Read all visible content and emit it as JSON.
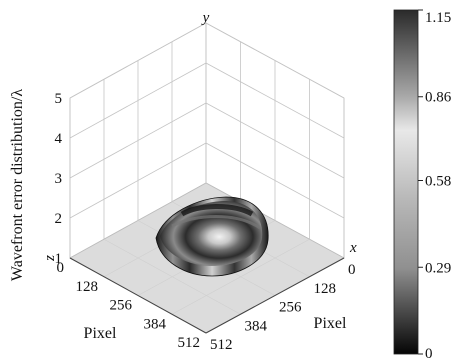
{
  "chart_data": {
    "type": "surface3d",
    "zlabel": "Wavefront error distribution/λ",
    "x_axis": {
      "name": "x",
      "label": "Pixel",
      "ticks": [
        "0",
        "128",
        "256",
        "384",
        "512"
      ],
      "range": [
        0,
        512
      ]
    },
    "y_axis": {
      "name": "y",
      "label": "Pixel",
      "ticks": [
        "0",
        "128",
        "256",
        "384",
        "512"
      ],
      "range": [
        0,
        512
      ]
    },
    "z_axis": {
      "name": "z",
      "ticks": [
        "1",
        "2",
        "3",
        "4",
        "5"
      ],
      "range": [
        1,
        5
      ]
    },
    "grid": true,
    "colormap": "gray",
    "colorbar": {
      "ticks": [
        "1.15",
        "0.86",
        "0.58",
        "0.29",
        "0"
      ],
      "range": [
        0,
        1.15
      ],
      "placement": "right"
    },
    "surface": {
      "baseline_z": 1,
      "aperture_center": [
        256,
        256
      ],
      "aperture_radius_px": 150,
      "max_value": 1.15
    }
  }
}
